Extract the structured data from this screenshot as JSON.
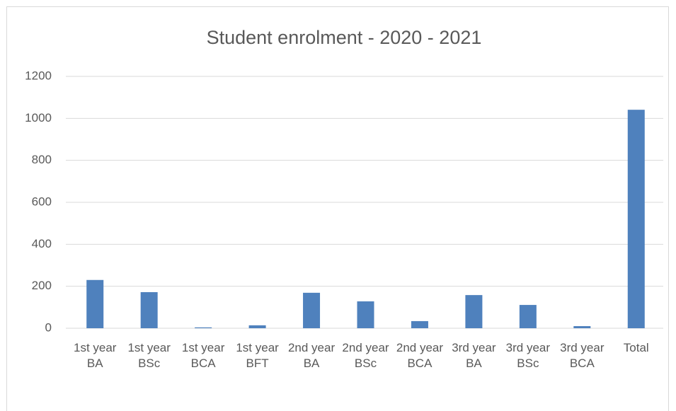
{
  "chart_data": {
    "type": "bar",
    "title": "Student enrolment - 2020 - 2021",
    "categories": [
      "1st year BA",
      "1st year BSc",
      "1st year BCA",
      "1st year BFT",
      "2nd year BA",
      "2nd year BSc",
      "2nd year BCA",
      "3rd year BA",
      "3rd year BSc",
      "3rd year BCA",
      "Total"
    ],
    "values": [
      230,
      172,
      4,
      14,
      169,
      128,
      34,
      158,
      111,
      10,
      1041
    ],
    "color": "#4f81bd",
    "ylim": [
      0,
      1200
    ],
    "yticks": [
      0,
      200,
      400,
      600,
      800,
      1000,
      1200
    ],
    "grid": true
  }
}
